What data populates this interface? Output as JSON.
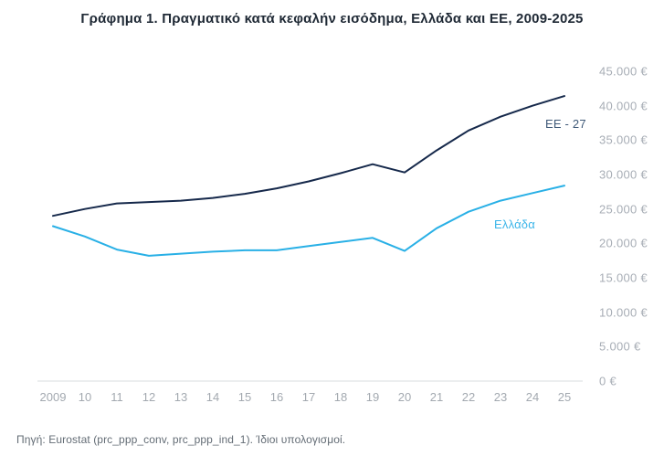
{
  "title": "Γράφημα 1. Πραγματικό κατά κεφαλήν εισόδημα, Ελλάδα και ΕΕ, 2009-2025",
  "source_note": "Πηγή: Eurostat (prc_ppp_conv, prc_ppp_ind_1). Ίδιοι υπολογισμοί.",
  "colors": {
    "eu_line": "#16294b",
    "greece_line": "#29b0e6",
    "axis_line": "#d9dcdf",
    "tick_text": "#a3a9b0",
    "title_text": "#202a36",
    "source_text": "#636c75"
  },
  "chart_data": {
    "type": "line",
    "title": "Γράφημα 1. Πραγματικό κατά κεφαλήν εισόδημα, Ελλάδα και ΕΕ, 2009-2025",
    "xlabel": "",
    "ylabel": "",
    "ylim": [
      0,
      45000
    ],
    "grid": false,
    "legend_position": "inline-end-of-line-labels",
    "categories": [
      "2009",
      "10",
      "11",
      "12",
      "13",
      "14",
      "15",
      "16",
      "17",
      "18",
      "19",
      "20",
      "21",
      "22",
      "23",
      "24",
      "25"
    ],
    "series": [
      {
        "name": "ΕΕ - 27",
        "color": "#16294b",
        "values": [
          24000,
          25000,
          25800,
          26000,
          26200,
          26600,
          27200,
          28000,
          29000,
          30200,
          31500,
          30300,
          33500,
          36400,
          38400,
          40000,
          41400
        ]
      },
      {
        "name": "Ελλάδα",
        "color": "#29b0e6",
        "values": [
          22500,
          21000,
          19100,
          18200,
          18500,
          18800,
          19000,
          19000,
          19600,
          20200,
          20800,
          18900,
          22200,
          24600,
          26200,
          27300,
          28400
        ]
      }
    ],
    "y_ticks": [
      {
        "value": 0,
        "label": "0 €"
      },
      {
        "value": 5000,
        "label": "5.000 €"
      },
      {
        "value": 10000,
        "label": "10.000 €"
      },
      {
        "value": 15000,
        "label": "15.000 €"
      },
      {
        "value": 20000,
        "label": "20.000 €"
      },
      {
        "value": 25000,
        "label": "25.000 €"
      },
      {
        "value": 30000,
        "label": "30.000 €"
      },
      {
        "value": 35000,
        "label": "35.000 €"
      },
      {
        "value": 40000,
        "label": "40.000 €"
      },
      {
        "value": 45000,
        "label": "45.000 €"
      }
    ]
  }
}
